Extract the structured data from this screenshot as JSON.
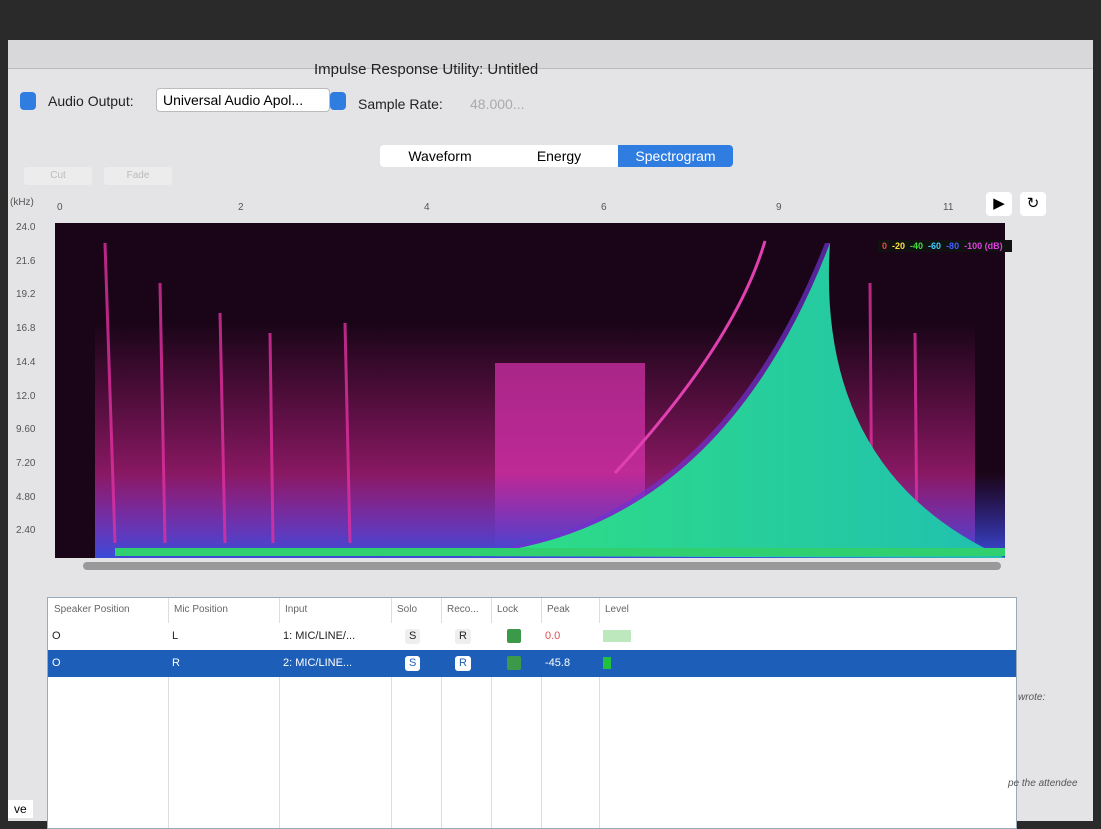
{
  "window": {
    "title": "Impulse Response Utility: Untitled"
  },
  "toolbar": {
    "audio_output_label": "Audio Output:",
    "audio_output_value": "Universal Audio Apol...",
    "sample_rate_label": "Sample Rate:",
    "sample_rate_value": "48.000..."
  },
  "tabs": [
    "Waveform",
    "Energy",
    "Spectrogram"
  ],
  "edit_buttons": [
    "Cut",
    "Fade"
  ],
  "spectrogram": {
    "freq_unit": "(kHz)",
    "time_labels": [
      "0",
      "2",
      "4",
      "6",
      "9",
      "11"
    ],
    "freq_labels": [
      "24.0",
      "21.6",
      "19.2",
      "16.8",
      "14.4",
      "12.0",
      "9.60",
      "7.20",
      "4.80",
      "2.40"
    ],
    "legend": [
      "0",
      "-20",
      "-40",
      "-60",
      "-80",
      "-100 (dB)"
    ]
  },
  "table": {
    "headers": [
      "Speaker Position",
      "Mic Position",
      "Input",
      "Solo",
      "Reco...",
      "Lock",
      "Peak",
      "Level"
    ],
    "rows": [
      {
        "speaker": "O",
        "mic": "L",
        "input": "1: MIC/LINE/...",
        "solo": "S",
        "record": "R",
        "peak": "0.0"
      },
      {
        "speaker": "O",
        "mic": "R",
        "input": "2: MIC/LINE...",
        "solo": "S",
        "record": "R",
        "peak": "-45.8"
      }
    ]
  },
  "side_texts": [
    "wrote:",
    "pe the attendee"
  ],
  "corner_text": "ve"
}
